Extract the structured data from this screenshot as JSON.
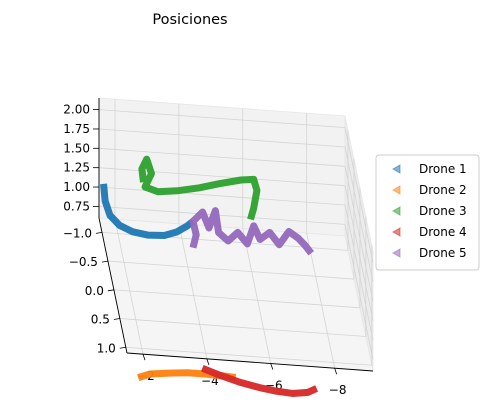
{
  "chart_data": {
    "type": "line",
    "projection": "3d",
    "title": "Posiciones",
    "xlabel": "",
    "ylabel": "",
    "zlabel": "",
    "x_ticks": [
      "−2",
      "−4",
      "−6",
      "−8"
    ],
    "y_ticks": [
      "−1.0",
      "−0.5",
      "0.0",
      "0.5",
      "1.0"
    ],
    "z_ticks": [
      "0.75",
      "1.00",
      "1.25",
      "1.50",
      "1.75",
      "2.00"
    ],
    "xlim": [
      -1.5,
      -9.2
    ],
    "ylim": [
      -1.25,
      1.1
    ],
    "zlim": [
      0.6,
      2.15
    ],
    "grid": true,
    "legend": {
      "placement": "right",
      "marker": "triangle-left"
    },
    "series": [
      {
        "name": "Drone 1",
        "color": "#1f77b4",
        "points": [
          [
            -1.4,
            -0.6,
            1.52
          ],
          [
            -1.45,
            -0.6,
            1.3
          ],
          [
            -1.6,
            -0.6,
            1.12
          ],
          [
            -1.9,
            -0.6,
            1.0
          ],
          [
            -2.3,
            -0.6,
            0.93
          ],
          [
            -2.8,
            -0.6,
            0.9
          ],
          [
            -3.3,
            -0.6,
            0.91
          ],
          [
            -3.7,
            -0.6,
            0.97
          ],
          [
            -4.0,
            -0.6,
            1.05
          ],
          [
            -4.2,
            -0.6,
            1.12
          ]
        ]
      },
      {
        "name": "Drone 2",
        "color": "#ff7f0e",
        "points": [
          [
            -2.0,
            0.7,
            0.0
          ],
          [
            -2.4,
            0.62,
            0.0
          ],
          [
            -3.0,
            0.58,
            0.0
          ],
          [
            -3.6,
            0.55,
            0.0
          ],
          [
            -4.2,
            0.55,
            0.0
          ],
          [
            -4.7,
            0.56,
            0.0
          ],
          [
            -5.1,
            0.57,
            0.0
          ]
        ]
      },
      {
        "name": "Drone 3",
        "color": "#2ca02c",
        "points": [
          [
            -2.65,
            -0.6,
            1.58
          ],
          [
            -2.6,
            -0.6,
            1.75
          ],
          [
            -2.75,
            -0.6,
            1.88
          ],
          [
            -2.9,
            -0.6,
            1.7
          ],
          [
            -2.7,
            -0.6,
            1.52
          ],
          [
            -3.1,
            -0.6,
            1.47
          ],
          [
            -3.7,
            -0.6,
            1.5
          ],
          [
            -4.4,
            -0.6,
            1.56
          ],
          [
            -5.0,
            -0.6,
            1.63
          ],
          [
            -5.7,
            -0.6,
            1.7
          ],
          [
            -6.1,
            -0.6,
            1.72
          ],
          [
            -6.2,
            -0.6,
            1.58
          ],
          [
            -6.1,
            -0.6,
            1.35
          ],
          [
            -6.0,
            -0.6,
            1.2
          ]
        ]
      },
      {
        "name": "Drone 4",
        "color": "#d62728",
        "points": [
          [
            -4.1,
            0.45,
            0.0
          ],
          [
            -4.6,
            0.55,
            0.0
          ],
          [
            -5.2,
            0.65,
            0.0
          ],
          [
            -5.8,
            0.72,
            0.0
          ],
          [
            -6.3,
            0.76,
            0.0
          ],
          [
            -6.8,
            0.78,
            0.0
          ],
          [
            -7.3,
            0.74,
            0.0
          ],
          [
            -7.6,
            0.66,
            0.0
          ]
        ]
      },
      {
        "name": "Drone 5",
        "color": "#9467bd",
        "points": [
          [
            -4.2,
            -0.6,
            0.78
          ],
          [
            -4.3,
            -0.6,
            0.95
          ],
          [
            -4.2,
            -0.6,
            1.12
          ],
          [
            -4.5,
            -0.6,
            1.25
          ],
          [
            -4.7,
            -0.6,
            1.05
          ],
          [
            -4.9,
            -0.6,
            1.28
          ],
          [
            -5.0,
            -0.6,
            1.0
          ],
          [
            -5.3,
            -0.6,
            0.9
          ],
          [
            -5.6,
            -0.6,
            1.02
          ],
          [
            -5.9,
            -0.6,
            0.88
          ],
          [
            -6.1,
            -0.6,
            1.12
          ],
          [
            -6.3,
            -0.6,
            0.95
          ],
          [
            -6.6,
            -0.6,
            1.05
          ],
          [
            -6.9,
            -0.6,
            0.9
          ],
          [
            -7.2,
            -0.6,
            1.08
          ],
          [
            -7.5,
            -0.6,
            1.0
          ],
          [
            -7.7,
            -0.6,
            0.92
          ],
          [
            -7.9,
            -0.6,
            0.82
          ]
        ]
      }
    ]
  }
}
